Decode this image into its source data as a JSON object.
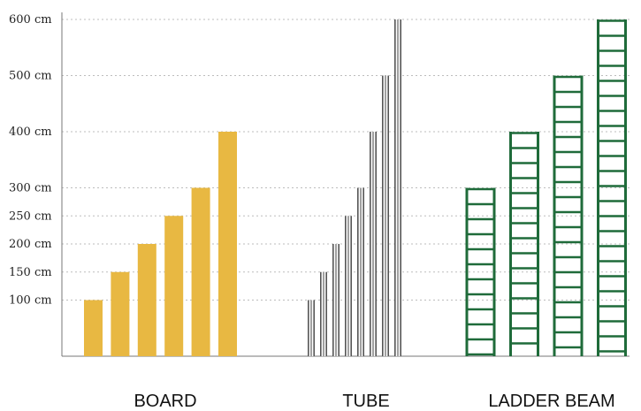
{
  "chart_data": {
    "type": "bar",
    "title": "",
    "xlabel": "",
    "ylabel": "",
    "ylim": [
      0,
      600
    ],
    "y_ticks": [
      {
        "value": 100,
        "label": "100 cm"
      },
      {
        "value": 150,
        "label": "150 cm"
      },
      {
        "value": 200,
        "label": "200 cm"
      },
      {
        "value": 250,
        "label": "250 cm"
      },
      {
        "value": 300,
        "label": "300 cm"
      },
      {
        "value": 400,
        "label": "400 cm"
      },
      {
        "value": 500,
        "label": "500 cm"
      },
      {
        "value": 600,
        "label": "600 cm"
      }
    ],
    "grid": "horizontal dotted",
    "groups": [
      {
        "label": "BOARD",
        "style": "solid-bar",
        "color": "#e8b842",
        "values": [
          100,
          150,
          200,
          250,
          300,
          400
        ]
      },
      {
        "label": "TUBE",
        "style": "tube",
        "color": "#555555",
        "values": [
          100,
          150,
          200,
          250,
          300,
          400,
          500,
          600
        ]
      },
      {
        "label": "LADDER BEAM",
        "style": "ladder",
        "color": "#1f6b3a",
        "values": [
          300,
          400,
          500,
          600
        ]
      }
    ]
  }
}
